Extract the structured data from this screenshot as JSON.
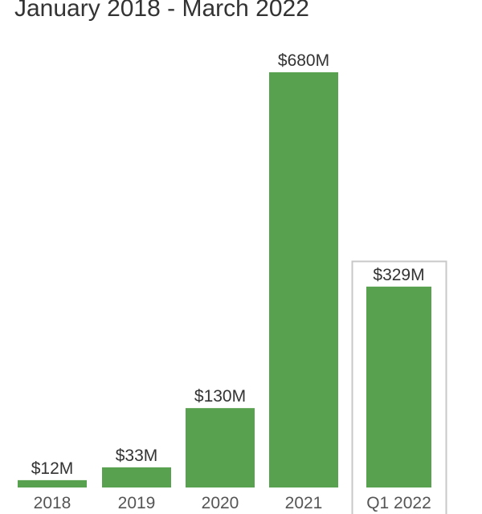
{
  "chart_data": {
    "type": "bar",
    "title": "January 2018 - March 2022",
    "categories": [
      "2018",
      "2019",
      "2020",
      "2021",
      "Q1 2022"
    ],
    "values": [
      12,
      33,
      130,
      680,
      329
    ],
    "data_labels": [
      "$12M",
      "$33M",
      "$130M",
      "$680M",
      "$329M"
    ],
    "unit": "$M",
    "highlighted_category": "Q1 2022",
    "ylim": [
      0,
      680
    ],
    "grid": false,
    "bar_color": "#58a14e",
    "highlight_border_color": "#c8c8c8"
  }
}
